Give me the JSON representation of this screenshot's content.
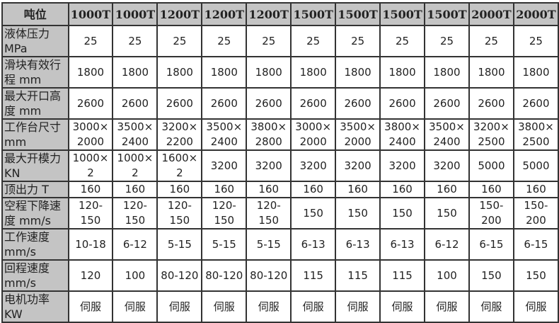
{
  "table": {
    "header_label": "吨位",
    "columns": [
      "1000T",
      "1000T",
      "1200T",
      "1200T",
      "1200T",
      "1500T",
      "1500T",
      "1500T",
      "1500T",
      "2000T",
      "2000T"
    ],
    "rows": [
      {
        "label": "液体压力\nMPa",
        "values": [
          "25",
          "25",
          "25",
          "25",
          "25",
          "25",
          "25",
          "25",
          "25",
          "25",
          "25"
        ]
      },
      {
        "label": "滑块有效行\n程 mm",
        "values": [
          "1800",
          "1800",
          "1800",
          "1800",
          "1800",
          "1800",
          "1800",
          "1800",
          "1800",
          "1800",
          "1800"
        ]
      },
      {
        "label": "最大开口高\n度 mm",
        "values": [
          "2600",
          "2600",
          "2600",
          "2600",
          "2600",
          "2600",
          "2600",
          "2600",
          "2600",
          "2600",
          "2600"
        ]
      },
      {
        "label": "工作台尺寸\nmm",
        "values": [
          "3000×\n2000",
          "3500×\n2400",
          "3200×\n2200",
          "3500×\n2400",
          "3800×\n2800",
          "3000×\n2000",
          "3500×\n2000",
          "3800×\n2400",
          "3500×\n2400",
          "3200×\n2500",
          "3800×\n2500"
        ]
      },
      {
        "label": "最大开模力\nKN",
        "values": [
          "1000×\n2",
          "1000×\n2",
          "1600×\n2",
          "3200",
          "3200",
          "3200",
          "3200",
          "3200",
          "3200",
          "5000",
          "5000"
        ]
      },
      {
        "label": "顶出力 T",
        "values": [
          "160",
          "160",
          "160",
          "160",
          "160",
          "160",
          "160",
          "160",
          "160",
          "160",
          "160"
        ]
      },
      {
        "label": "空程下降速\n度 mm/s",
        "values": [
          "120-\n150",
          "120-\n150",
          "120-\n150",
          "120-\n150",
          "120-\n150",
          "150",
          "150",
          "150",
          "150",
          "150-\n200",
          "150-\n200"
        ]
      },
      {
        "label": "工作速度\nmm/s",
        "values": [
          "10-18",
          "6-12",
          "5-15",
          "5-15",
          "5-15",
          "6-13",
          "6-13",
          "6-13",
          "6-12",
          "6-15",
          "6-15"
        ]
      },
      {
        "label": "回程速度\nmm/s",
        "values": [
          "120",
          "100",
          "80-120",
          "80-120",
          "80-120",
          "115",
          "115",
          "115",
          "100",
          "150",
          "150"
        ]
      },
      {
        "label": "电机功率\nKW",
        "values": [
          "伺服",
          "伺服",
          "伺服",
          "伺服",
          "伺服",
          "伺服",
          "伺服",
          "伺服",
          "伺服",
          "伺服",
          "伺服"
        ]
      }
    ]
  }
}
